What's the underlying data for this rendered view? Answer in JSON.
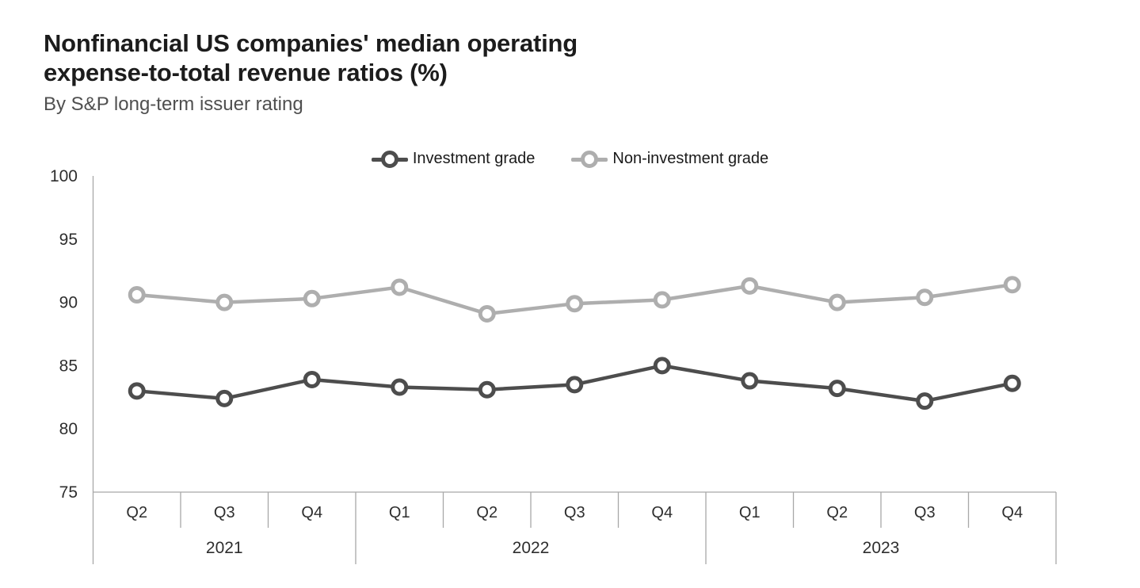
{
  "title": {
    "lines": [
      "Nonfinancial US companies' median operating",
      "expense-to-total revenue ratios (%)"
    ]
  },
  "subtitle": "By S&P long-term issuer rating",
  "legend": {
    "items": [
      {
        "label": "Investment grade",
        "color": "#4d4d4d"
      },
      {
        "label": "Non-investment grade",
        "color": "#aeaeae"
      }
    ],
    "position": "top-center"
  },
  "colors": {
    "background": "#ffffff",
    "title_text": "#1c1c1c",
    "subtitle_text": "#4f4f4f",
    "axis_line": "#a8a8a8",
    "tick_text": "#2e2e2e",
    "investment_grade": "#4d4d4d",
    "non_investment_grade": "#aeaeae",
    "marker_fill": "#ffffff"
  },
  "chart_data": {
    "type": "line",
    "title": "Nonfinancial US companies' median operating expense-to-total revenue ratios (%)",
    "subtitle": "By S&P long-term issuer rating",
    "categories": [
      "Q2 2021",
      "Q3 2021",
      "Q4 2021",
      "Q1 2022",
      "Q2 2022",
      "Q3 2022",
      "Q4 2022",
      "Q1 2023",
      "Q2 2023",
      "Q3 2023",
      "Q4 2023"
    ],
    "year_groups": [
      {
        "label": "2021",
        "quarters": [
          "Q2",
          "Q3",
          "Q4"
        ]
      },
      {
        "label": "2022",
        "quarters": [
          "Q1",
          "Q2",
          "Q3",
          "Q4"
        ]
      },
      {
        "label": "2023",
        "quarters": [
          "Q1",
          "Q2",
          "Q3",
          "Q4"
        ]
      }
    ],
    "series": [
      {
        "name": "Investment grade",
        "color": "#4d4d4d",
        "values": [
          83.0,
          82.4,
          83.9,
          83.3,
          83.1,
          83.5,
          85.0,
          83.8,
          83.2,
          82.2,
          83.6
        ]
      },
      {
        "name": "Non-investment grade",
        "color": "#aeaeae",
        "values": [
          90.6,
          90.0,
          90.3,
          91.2,
          89.1,
          89.9,
          90.2,
          91.3,
          90.0,
          90.4,
          91.4
        ]
      }
    ],
    "xlabel": "",
    "ylabel": "",
    "ylim": [
      75,
      100
    ],
    "yticks": [
      75,
      80,
      85,
      90,
      95,
      100
    ],
    "grid": false,
    "legend_position": "top-center",
    "marker": "open-circle"
  }
}
